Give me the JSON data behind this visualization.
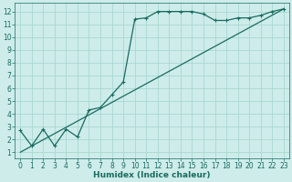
{
  "line1_x": [
    0,
    1,
    2,
    3,
    4,
    5,
    6,
    7,
    8,
    9,
    10,
    11,
    12,
    13,
    14,
    15,
    16,
    17,
    18,
    19,
    20,
    21,
    22,
    23
  ],
  "line1_y": [
    2.7,
    1.5,
    2.8,
    1.5,
    2.8,
    2.2,
    4.3,
    4.5,
    5.5,
    6.5,
    11.4,
    11.5,
    12.0,
    12.0,
    12.0,
    12.0,
    11.8,
    11.3,
    11.3,
    11.5,
    11.5,
    11.7,
    12.0,
    12.2
  ],
  "line2_x": [
    0,
    23
  ],
  "line2_y": [
    1.0,
    12.2
  ],
  "xlim": [
    -0.5,
    23.5
  ],
  "ylim": [
    0.5,
    12.7
  ],
  "xticks": [
    0,
    1,
    2,
    3,
    4,
    5,
    6,
    7,
    8,
    9,
    10,
    11,
    12,
    13,
    14,
    15,
    16,
    17,
    18,
    19,
    20,
    21,
    22,
    23
  ],
  "yticks": [
    1,
    2,
    3,
    4,
    5,
    6,
    7,
    8,
    9,
    10,
    11,
    12
  ],
  "xlabel": "Humidex (Indice chaleur)",
  "bg_color": "#cdecea",
  "line_color": "#1a6b60",
  "grid_color": "#aad8d2",
  "tick_fontsize": 5.5,
  "xlabel_fontsize": 6.5,
  "linewidth1": 0.9,
  "linewidth2": 0.9,
  "markersize": 3.5
}
